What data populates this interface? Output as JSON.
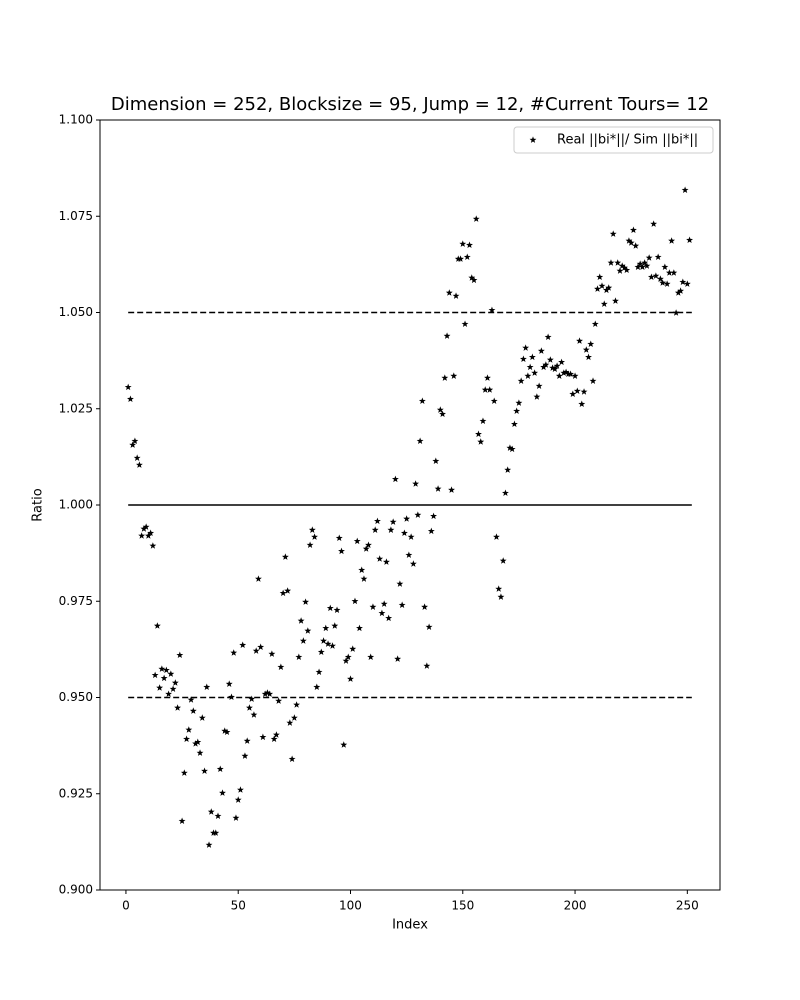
{
  "chart_data": {
    "type": "scatter",
    "title": "Dimension = 252, Blocksize = 95, Jump = 12, #Current Tours= 12",
    "xlabel": "Index",
    "ylabel": "Ratio",
    "x": [
      1,
      2,
      3,
      4,
      5,
      6,
      7,
      8,
      9,
      10,
      11,
      12,
      13,
      14,
      15,
      16,
      17,
      18,
      19,
      20,
      21,
      22,
      23,
      24,
      25,
      26,
      27,
      28,
      29,
      30,
      31,
      32,
      33,
      34,
      35,
      36,
      37,
      38,
      39,
      40,
      41,
      42,
      43,
      44,
      45,
      46,
      47,
      48,
      49,
      50,
      51,
      52,
      53,
      54,
      55,
      56,
      57,
      58,
      59,
      60,
      61,
      62,
      63,
      64,
      65,
      66,
      67,
      68,
      69,
      70,
      71,
      72,
      73,
      74,
      75,
      76,
      77,
      78,
      79,
      80,
      81,
      82,
      83,
      84,
      85,
      86,
      87,
      88,
      89,
      90,
      91,
      92,
      93,
      94,
      95,
      96,
      97,
      98,
      99,
      100,
      101,
      102,
      103,
      104,
      105,
      106,
      107,
      108,
      109,
      110,
      111,
      112,
      113,
      114,
      115,
      116,
      117,
      118,
      119,
      120,
      121,
      122,
      123,
      124,
      125,
      126,
      127,
      128,
      129,
      130,
      131,
      132,
      133,
      134,
      135,
      136,
      137,
      138,
      139,
      140,
      141,
      142,
      143,
      144,
      145,
      146,
      147,
      148,
      149,
      150,
      151,
      152,
      153,
      154,
      155,
      156,
      157,
      158,
      159,
      160,
      161,
      162,
      163,
      164,
      165,
      166,
      167,
      168,
      169,
      170,
      171,
      172,
      173,
      174,
      175,
      176,
      177,
      178,
      179,
      180,
      181,
      182,
      183,
      184,
      185,
      186,
      187,
      188,
      189,
      190,
      191,
      192,
      193,
      194,
      195,
      196,
      197,
      198,
      199,
      200,
      201,
      202,
      203,
      204,
      205,
      206,
      207,
      208,
      209,
      210,
      211,
      212,
      213,
      214,
      215,
      216,
      217,
      218,
      219,
      220,
      221,
      222,
      223,
      224,
      225,
      226,
      227,
      228,
      229,
      230,
      231,
      232,
      233,
      234,
      235,
      236,
      237,
      238,
      239,
      240,
      241,
      242,
      243,
      244,
      245,
      246,
      247,
      248,
      249,
      250,
      251
    ],
    "series": [
      {
        "name": "Real ||bi*||/ Sim ||bi*||",
        "color": "#000000",
        "values": [
          1.0306,
          1.0275,
          1.0156,
          1.0166,
          1.0122,
          1.0104,
          0.992,
          0.9938,
          0.9943,
          0.992,
          0.9927,
          0.9894,
          0.9558,
          0.9686,
          0.9525,
          0.9574,
          0.955,
          0.9571,
          0.9509,
          0.9561,
          0.9522,
          0.9538,
          0.9473,
          0.961,
          0.9179,
          0.9304,
          0.9392,
          0.9416,
          0.9494,
          0.9465,
          0.938,
          0.9384,
          0.9356,
          0.9447,
          0.9309,
          0.9527,
          0.9117,
          0.9203,
          0.9148,
          0.9148,
          0.9192,
          0.9314,
          0.9252,
          0.9413,
          0.941,
          0.9535,
          0.9501,
          0.9616,
          0.9187,
          0.9234,
          0.926,
          0.9636,
          0.9348,
          0.9387,
          0.9473,
          0.9496,
          0.9455,
          0.9621,
          0.9808,
          0.9631,
          0.9397,
          0.9509,
          0.9512,
          0.9509,
          0.9613,
          0.9392,
          0.9403,
          0.9491,
          0.9579,
          0.9771,
          0.9865,
          0.9777,
          0.9434,
          0.934,
          0.9447,
          0.9481,
          0.9605,
          0.9699,
          0.9647,
          0.9748,
          0.9673,
          0.9896,
          0.9935,
          0.9917,
          0.9527,
          0.9566,
          0.9618,
          0.9647,
          0.968,
          0.9639,
          0.9732,
          0.9634,
          0.9686,
          0.9727,
          0.9914,
          0.988,
          0.9377,
          0.9595,
          0.9605,
          0.9548,
          0.9626,
          0.975,
          0.9906,
          0.968,
          0.9831,
          0.9808,
          0.9886,
          0.9896,
          0.9605,
          0.9735,
          0.9935,
          0.9958,
          0.986,
          0.9719,
          0.9743,
          0.9852,
          0.9706,
          0.9935,
          0.9956,
          1.0067,
          0.96,
          0.9795,
          0.974,
          0.9927,
          0.9964,
          0.987,
          0.9917,
          0.9847,
          1.0055,
          0.9974,
          1.0166,
          1.027,
          0.9735,
          0.9582,
          0.9683,
          0.9932,
          0.9971,
          1.0114,
          1.0042,
          1.0247,
          1.0236,
          1.033,
          1.0439,
          1.0551,
          1.0039,
          1.0335,
          1.0543,
          1.0639,
          1.0639,
          1.0678,
          1.047,
          1.0644,
          1.0675,
          1.059,
          1.0584,
          1.0743,
          1.0184,
          1.0164,
          1.0218,
          1.0299,
          1.033,
          1.0299,
          1.0506,
          1.027,
          0.9917,
          0.9782,
          0.9761,
          0.9855,
          1.0031,
          1.0091,
          1.0148,
          1.0145,
          1.021,
          1.0244,
          1.0265,
          1.0322,
          1.0379,
          1.0408,
          1.0335,
          1.0358,
          1.0384,
          1.0343,
          1.0281,
          1.0309,
          1.04,
          1.0358,
          1.0364,
          1.0436,
          1.0377,
          1.0356,
          1.0353,
          1.0361,
          1.0335,
          1.0371,
          1.0343,
          1.0345,
          1.034,
          1.034,
          1.0288,
          1.0335,
          1.0296,
          1.0426,
          1.0262,
          1.0294,
          1.0403,
          1.0384,
          1.0418,
          1.0322,
          1.047,
          1.0561,
          1.0592,
          1.0569,
          1.0522,
          1.0558,
          1.0564,
          1.0629,
          1.0704,
          1.053,
          1.0629,
          1.0608,
          1.0621,
          1.0616,
          1.061,
          1.0686,
          1.0681,
          1.0714,
          1.0673,
          1.0618,
          1.0626,
          1.0618,
          1.0629,
          1.0621,
          1.0642,
          1.0592,
          1.073,
          1.0595,
          1.0644,
          1.0587,
          1.0577,
          1.0618,
          1.0574,
          1.0603,
          1.0686,
          1.0603,
          1.0499,
          1.0551,
          1.0556,
          1.0579,
          1.0818,
          1.0574,
          1.0688
        ]
      }
    ],
    "reference_lines": [
      {
        "y": 1.05,
        "x": [
          1,
          252
        ],
        "style": "dashed"
      },
      {
        "y": 1.0,
        "x": [
          1,
          252
        ],
        "style": "solid"
      },
      {
        "y": 0.95,
        "x": [
          1,
          252
        ],
        "style": "dashed"
      }
    ],
    "xlim": [
      -11.55,
      264.55
    ],
    "xticks": [
      0,
      50,
      100,
      150,
      200,
      250
    ],
    "ylim": [
      0.9,
      1.1
    ],
    "yticks": [
      {
        "value": 0.9,
        "label": "0.900"
      },
      {
        "value": 0.925,
        "label": "0.925"
      },
      {
        "value": 0.95,
        "label": "0.950"
      },
      {
        "value": 0.975,
        "label": "0.975"
      },
      {
        "value": 1.0,
        "label": "1.000"
      },
      {
        "value": 1.025,
        "label": "1.025"
      },
      {
        "value": 1.05,
        "label": "1.050"
      },
      {
        "value": 1.075,
        "label": "1.075"
      },
      {
        "value": 1.1,
        "label": "1.100"
      }
    ],
    "legend": "upper right",
    "grid": false
  }
}
